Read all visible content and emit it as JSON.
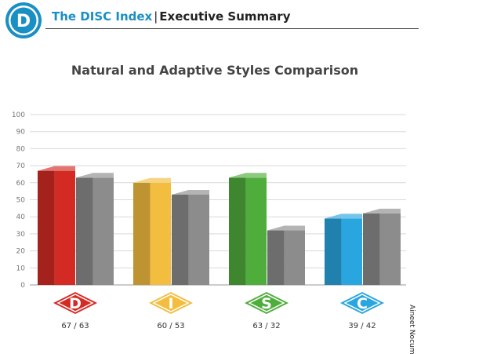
{
  "header": {
    "logo_letter": "D",
    "brand": "The DISC Index",
    "separator": "|",
    "section": "Executive Summary"
  },
  "side_label": "Aineet Nocum",
  "colors": {
    "brand_blue": "#1a8fc4",
    "gray_bar": "#8c8c8c"
  },
  "chart_data": {
    "type": "bar",
    "title": "Natural and Adaptive Styles Comparison",
    "ylim": [
      0,
      100
    ],
    "yticks": [
      0,
      10,
      20,
      30,
      40,
      50,
      60,
      70,
      80,
      90,
      100
    ],
    "grid": true,
    "categories": [
      "D",
      "I",
      "S",
      "C"
    ],
    "category_colors": [
      "#d42a24",
      "#f3bd3f",
      "#4fad3c",
      "#29a5df"
    ],
    "series": [
      {
        "values": [
          67,
          60,
          63,
          39
        ]
      },
      {
        "values": [
          63,
          53,
          32,
          42
        ]
      }
    ],
    "category_labels": [
      "67 / 63",
      "60 / 53",
      "63 / 32",
      "39 / 42"
    ]
  }
}
